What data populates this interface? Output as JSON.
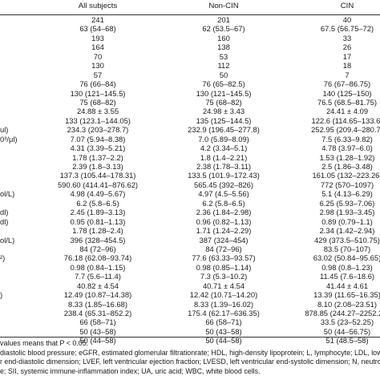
{
  "header": {
    "all": "All subjects",
    "non": "Non-CIN",
    "cin": "CIN"
  },
  "rows": [
    {
      "label": "",
      "all": "241",
      "non": "201",
      "cin": "40"
    },
    {
      "label": "",
      "all": "63 (54–68)",
      "non": "62 (53.5–67)",
      "cin": "67.5 (56.75–72)"
    },
    {
      "label": "",
      "all": "193",
      "non": "160",
      "cin": "33"
    },
    {
      "label": "",
      "all": "164",
      "non": "138",
      "cin": "26"
    },
    {
      "label": "",
      "all": "70",
      "non": "53",
      "cin": "17"
    },
    {
      "label": "",
      "all": "130",
      "non": "112",
      "cin": "18"
    },
    {
      "label": "",
      "all": "57",
      "non": "50",
      "cin": "7"
    },
    {
      "label": "",
      "all": "76 (66–84)",
      "non": "76 (65–82.5)",
      "cin": "76 (67–86.75)"
    },
    {
      "label": "",
      "all": "130 (121–145.5)",
      "non": "130 (121–145.5)",
      "cin": "140 (125–150)"
    },
    {
      "label": "",
      "all": "75 (68–82)",
      "non": "75 (68–82)",
      "cin": "76.5 (68.5–81.75)"
    },
    {
      "label": "",
      "all": "24.88 ± 3.55",
      "non": "24.98 ± 3.43",
      "cin": "24.41 ± 4.09"
    },
    {
      "label": "",
      "all": "133 (123.1–144.05)",
      "non": "135 (125–144.5)",
      "cin": "122.6 (114.65–133.6)"
    },
    {
      "label": "ul)",
      "all": "234.3 (203–278.7)",
      "non": "232.9 (196.45–277.8)",
      "cin": "252.95 (209.4–280.7)"
    },
    {
      "label": "0³/μl)",
      "all": "7.07 (5.94–8.38)",
      "non": "7.0 (5.89–8.09)",
      "cin": "7.5 (6.33–9.82)"
    },
    {
      "label": "",
      "all": "4.31 (3.39–5.21)",
      "non": "4.2 (3.34–5.1)",
      "cin": "4.78 (3.97–6.0)"
    },
    {
      "label": "",
      "all": "1.78 (1.37–2.2)",
      "non": "1.8 (1.4–2.21)",
      "cin": "1.53 (1.28–1.92)"
    },
    {
      "label": "",
      "all": "2.39 (1.8–3.13)",
      "non": "2.38 (1.78–3.11)",
      "cin": "2.5 (1.86–3.48)"
    },
    {
      "label": "",
      "all": "137.3 (105.44–178.31)",
      "non": "133.5 (101.9–172.43)",
      "cin": "161.05 (132–223.26)"
    },
    {
      "label": "",
      "all": "590.60 (414.41–876.62)",
      "non": "565.45 (392–826)",
      "cin": "772 (570–1097)"
    },
    {
      "label": "ol/L)",
      "all": "4.98 (4.49–5.67)",
      "non": "4.97 (4.5–5.56)",
      "cin": "5.1 (4.13–6.29)"
    },
    {
      "label": "",
      "all": "6.2 (5.8–6.5)",
      "non": "6.2 (5.8–6.5)",
      "cin": "6.25 (5.93–7.06)"
    },
    {
      "label": "dl)",
      "all": "2.45 (1.89–3.13)",
      "non": "2.36 (1.84–2.98)",
      "cin": "2.98 (1.93–3.45)"
    },
    {
      "label": "dl)",
      "all": "0.95 (0.81–1.13)",
      "non": "0.96 (0.82–1.13)",
      "cin": "0.89 (0.79–1.1)"
    },
    {
      "label": "",
      "all": "1.78 (1.28–2.4)",
      "non": "1.71 (1.24–2.29)",
      "cin": "2.34 (1.42–2.94)"
    },
    {
      "label": "ol/L)",
      "all": "396 (328–454.5)",
      "non": "387 (324–454)",
      "cin": "429 (373.5–510.75)"
    },
    {
      "label": "",
      "all": "84 (72–96)",
      "non": "84 (72–96)",
      "cin": "83.5 (70–107)"
    },
    {
      "label": "²)",
      "all": "76.18 (62.08–93.74)",
      "non": "77.6 (63.33–93.57)",
      "cin": "63.02 (50.84–95.65)"
    },
    {
      "label": "",
      "all": "0.98 (0.84–1.15)",
      "non": "0.98 (0.85–1.14)",
      "cin": "0.98 (0.8–1.23)"
    },
    {
      "label": "",
      "all": "7.7 (5.6–11.4)",
      "non": "7.3 (5.3–10.2)",
      "cin": "11.45 (7.6–18.6)"
    },
    {
      "label": "",
      "all": "40.82 ± 4.54",
      "non": "40.71 ± 4.54",
      "cin": "41.44 ± 4.61"
    },
    {
      "label": ")",
      "all": "12.49 (10.87–14.38)",
      "non": "12.42 (10.71–14.20)",
      "cin": "13.39 (11.65–16.35)"
    },
    {
      "label": "",
      "all": "8.33 (1.85–16.68)",
      "non": "8.33 (1.39–16.02)",
      "cin": "8.10 (2.08–23.51)"
    },
    {
      "label": "",
      "all": "238.4 (65.31–852.2)",
      "non": "175.4 (62.17–636.35)",
      "cin": "878.85 (244.27–2252.25)"
    },
    {
      "label": "",
      "all": "66 (58–71)",
      "non": "66 (58–71)",
      "cin": "33.5 (23–52.25)"
    },
    {
      "label": "",
      "all": "50 (43–58)",
      "non": "50 (43–58)",
      "cin": "50 (44–56.75)"
    },
    {
      "label": "",
      "all": "50 (44–58)",
      "non": "50 (44–58)",
      "cin": "51 (48.5–58)"
    }
  ],
  "notes": [
    "values means that P < 0.05.",
    "diastolic blood pressure; eGFR, estimated glomerular filtrationrate; HDL, high-density lipoprotein; L, lymphocyte; LDL, low",
    "r end-diastolic dimension; LVEF, left ventricular ejection fraction; LVESD, left ventricular end-systolic dimension; N, neutro",
    "e; SII, systemic immune-inflammation index; UA, uric acid; WBC, white blood cells."
  ]
}
